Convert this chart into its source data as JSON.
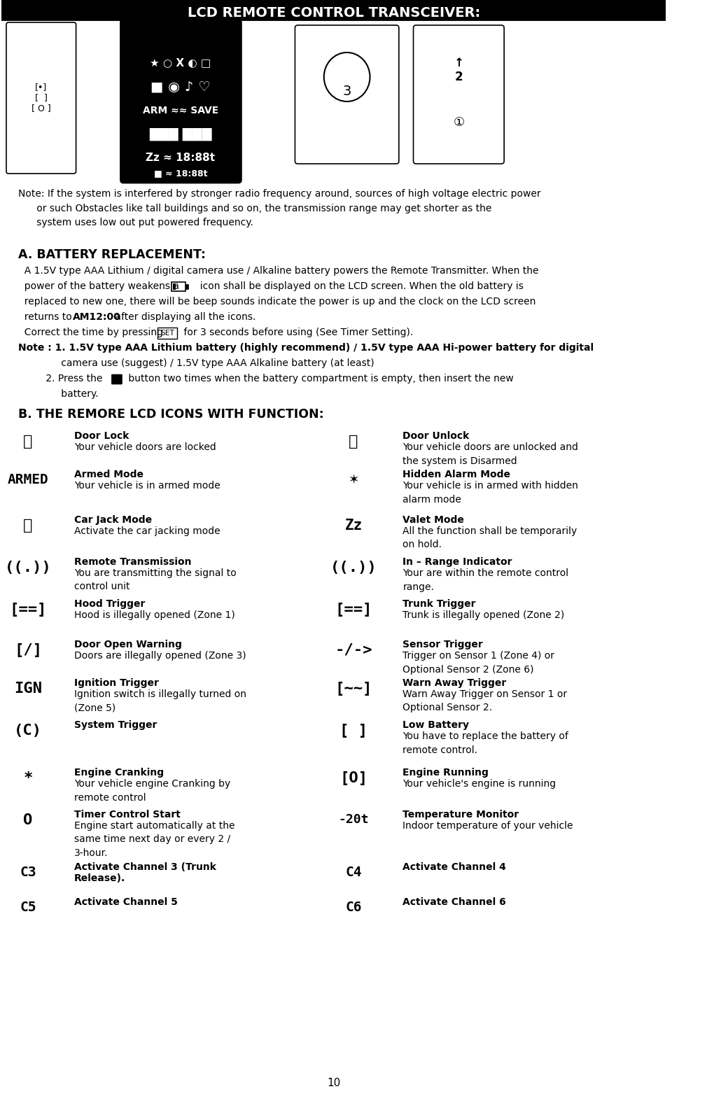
{
  "title": "LCD REMOTE CONTROL TRANSCEIVER:",
  "title_bg": "#000000",
  "title_color": "#ffffff",
  "page_bg": "#ffffff",
  "text_color": "#000000",
  "note_text": "Note: If the system is interfered by stronger radio frequency around, sources of high voltage electric power\n      or such Obstacles like tall buildings and so on, the transmission range may get shorter as the\n      system uses low out put powered frequency.",
  "section_a_title": "A. BATTERY REPLACEMENT:",
  "section_a_body": [
    "A 1.5V type AAA Lithium / digital camera use / Alkaline battery powers the Remote Transmitter. When the",
    "power of the battery weakens a    □    icon shall be displayed on the LCD screen. When the old battery is",
    "replaced to new one, there will be beep sounds indicate the power is up and the clock on the LCD screen",
    "returns to AM12:00 after displaying all the icons.",
    "Correct the time by pressing  SET  for 3 seconds before using (See Timer Setting).",
    "Note : 1. 1.5V type AAA Lithium battery (highly recommend) / 1.5V type AAA Hi-power battery for digital",
    "              camera use (suggest) / 1.5V type AAA Alkaline battery (at least)",
    "        2. Press the  ■  button two times when the battery compartment is empty, then insert the new",
    "              battery."
  ],
  "section_b_title": "B. THE REMORE LCD ICONS WITH FUNCTION:",
  "icons": [
    {
      "symbol": "🔒",
      "title": "Door Lock",
      "desc": "Your vehicle doors are locked",
      "col": 0
    },
    {
      "symbol": "🔓",
      "title": "Door Unlock",
      "desc": "Your vehicle doors are unlocked and\nthe system is Disarmed",
      "col": 1
    },
    {
      "symbol": "ARMED",
      "title": "Armed Mode",
      "desc": "Your vehicle is in armed mode",
      "col": 0
    },
    {
      "symbol": "✶",
      "title": "Hidden Alarm Mode",
      "desc": "Your vehicle is in armed with hidden\nalarm mode",
      "col": 1
    },
    {
      "symbol": "🔫",
      "title": "Car Jack Mode",
      "desc": "Activate the car jacking mode",
      "col": 0
    },
    {
      "symbol": "Zz",
      "title": "Valet Mode",
      "desc": "All the function shall be temporarily\non hold.",
      "col": 1
    },
    {
      "symbol": "((.))",
      "title": "Remote Transmission",
      "desc": "You are transmitting the signal to\ncontrol unit",
      "col": 0
    },
    {
      "symbol": "((.))",
      "title": "In – Range Indicator",
      "desc": "Your are within the remote control\nrange.",
      "col": 1
    },
    {
      "symbol": "[==]",
      "title": "Hood Trigger",
      "desc": "Hood is illegally opened (Zone 1)",
      "col": 0
    },
    {
      "symbol": "[==]",
      "title": "Trunk Trigger",
      "desc": "Trunk is illegally opened (Zone 2)",
      "col": 1
    },
    {
      "symbol": "[/]",
      "title": "Door Open Warning",
      "desc": "Doors are illegally opened (Zone 3)",
      "col": 0
    },
    {
      "symbol": "-/->",
      "title": "Sensor Trigger",
      "desc": "Trigger on Sensor 1 (Zone 4) or\nOptional Sensor 2 (Zone 6)",
      "col": 1
    },
    {
      "symbol": "IGN",
      "title": "Ignition Trigger",
      "desc": "Ignition switch is illegally turned on\n(Zone 5)",
      "col": 0
    },
    {
      "symbol": "[~~]",
      "title": "Warn Away Trigger",
      "desc": "Warn Away Trigger on Sensor 1 or\nOptional Sensor 2.",
      "col": 1
    },
    {
      "symbol": "(C)",
      "title": "System Trigger",
      "desc": "",
      "col": 0
    },
    {
      "symbol": "[ ]",
      "title": "Low Battery",
      "desc": "You have to replace the battery of\nremote control.",
      "col": 1
    },
    {
      "symbol": "*",
      "title": "Engine Cranking",
      "desc": "Your vehicle engine Cranking by\nremote control",
      "col": 0
    },
    {
      "symbol": "[O]",
      "title": "Engine Running",
      "desc": "Your vehicle's engine is running",
      "col": 1
    },
    {
      "symbol": "O",
      "title": "Timer Control Start",
      "desc": "Engine start automatically at the\nsame time next day or every 2 /\n3-hour.",
      "col": 0
    },
    {
      "symbol": "-20t",
      "title": "Temperature Monitor",
      "desc": "Indoor temperature of your vehicle",
      "col": 1
    },
    {
      "symbol": "C3",
      "title": "Activate Channel 3 (Trunk\nRelease).",
      "desc": "",
      "col": 0
    },
    {
      "symbol": "C4",
      "title": "Activate Channel 4",
      "desc": "",
      "col": 1
    },
    {
      "symbol": "C5",
      "title": "Activate Channel 5",
      "desc": "",
      "col": 0
    },
    {
      "symbol": "C6",
      "title": "Activate Channel 6",
      "desc": "",
      "col": 1
    }
  ],
  "footer": "10"
}
